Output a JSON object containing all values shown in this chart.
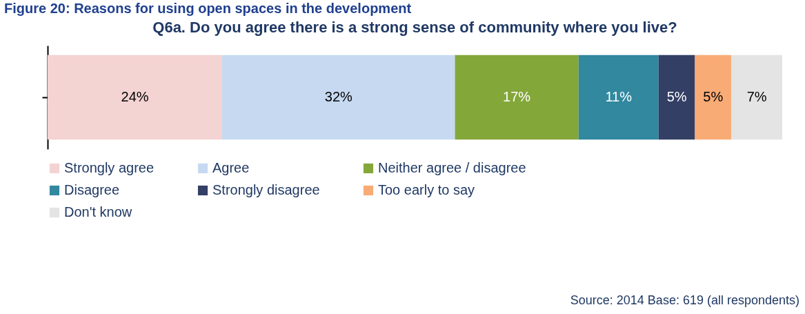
{
  "chart_data": {
    "type": "bar",
    "orientation": "horizontal",
    "stacked": true,
    "title": "Figure 20: Reasons for using open spaces in the development",
    "subtitle": "Q6a. Do you agree there is a strong sense of community where you live?",
    "categories": [
      null
    ],
    "series": [
      {
        "name": "Strongly agree",
        "color": "#f4d3d3",
        "values": [
          24
        ],
        "value_labels": [
          "24%"
        ]
      },
      {
        "name": "Agree",
        "color": "#c6d9f1",
        "values": [
          32
        ],
        "value_labels": [
          "32%"
        ]
      },
      {
        "name": "Neither agree / disagree",
        "color": "#84a73a",
        "values": [
          17
        ],
        "value_labels": [
          "17%"
        ]
      },
      {
        "name": "Disagree",
        "color": "#31889f",
        "values": [
          11
        ],
        "value_labels": [
          "11%"
        ]
      },
      {
        "name": "Strongly disagree",
        "color": "#333f64",
        "values": [
          5
        ],
        "value_labels": [
          "5%"
        ]
      },
      {
        "name": "Too early to say",
        "color": "#f9ab76",
        "values": [
          5
        ],
        "value_labels": [
          "5%"
        ]
      },
      {
        "name": "Don't know",
        "color": "#e4e4e4",
        "values": [
          7
        ],
        "value_labels": [
          "7%"
        ]
      }
    ],
    "legend": "bottom",
    "tick_labels": false,
    "grid": false,
    "annotations": [
      "Source: 2014 Base: 619 (all respondents)"
    ]
  }
}
